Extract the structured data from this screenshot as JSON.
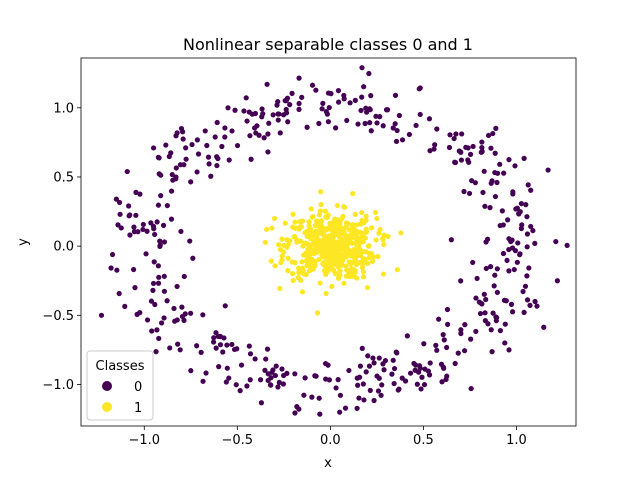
{
  "chart_data": {
    "type": "scatter",
    "title": "Nonlinear separable classes 0 and 1",
    "xlabel": "x",
    "ylabel": "y",
    "xlim": [
      -1.34,
      1.32
    ],
    "ylim": [
      -1.3,
      1.36
    ],
    "xticks": [
      -1.0,
      -0.5,
      0.0,
      0.5,
      1.0
    ],
    "xtick_labels": [
      "−1.0",
      "−0.5",
      "0.0",
      "0.5",
      "1.0"
    ],
    "yticks": [
      -1.0,
      -0.5,
      0.0,
      0.5,
      1.0
    ],
    "ytick_labels": [
      "−1.0",
      "−0.5",
      "0.0",
      "0.5",
      "1.0"
    ],
    "grid": false,
    "legend": {
      "title": "Classes",
      "placement": "lower-left",
      "entries": [
        {
          "label": "0",
          "color": "#440154"
        },
        {
          "label": "1",
          "color": "#fde725"
        }
      ]
    },
    "series": [
      {
        "class": "0",
        "color": "#440154",
        "distribution": "ring",
        "points": [
          [
            -1.23,
            -0.5
          ],
          [
            1.22,
            -0.25
          ],
          [
            0.17,
            1.29
          ],
          [
            -1.13,
            0.23
          ],
          [
            -1.15,
            0.34
          ],
          [
            -0.18,
            -1.16
          ],
          [
            1.17,
            0.55
          ],
          [
            -0.34,
            1.17
          ],
          [
            -0.95,
            0.71
          ],
          [
            0.35,
            1.09
          ],
          [
            0.96,
            -0.75
          ],
          [
            -0.75,
            -0.9
          ],
          [
            0.85,
            0.8
          ],
          [
            -0.55,
            1.0
          ],
          [
            0.6,
            -0.98
          ],
          [
            1.1,
            -0.4
          ],
          [
            -1.05,
            -0.3
          ],
          [
            0.05,
            -1.2
          ],
          [
            -0.8,
            0.85
          ],
          [
            1.05,
            0.3
          ]
        ],
        "n_generated": 500,
        "ring_radius_mean": 1.0,
        "ring_radius_spread": 0.1
      },
      {
        "class": "1",
        "color": "#fde725",
        "distribution": "blob",
        "points": [
          [
            0.0,
            0.0
          ],
          [
            -0.3,
            0.2
          ],
          [
            0.36,
            -0.17
          ],
          [
            0.12,
            0.38
          ],
          [
            -0.15,
            -0.33
          ],
          [
            0.31,
            0.07
          ],
          [
            -0.26,
            -0.1
          ],
          [
            0.2,
            -0.3
          ],
          [
            -0.05,
            0.3
          ],
          [
            0.25,
            0.2
          ]
        ],
        "n_generated": 500,
        "blob_spread": 0.12
      }
    ]
  }
}
